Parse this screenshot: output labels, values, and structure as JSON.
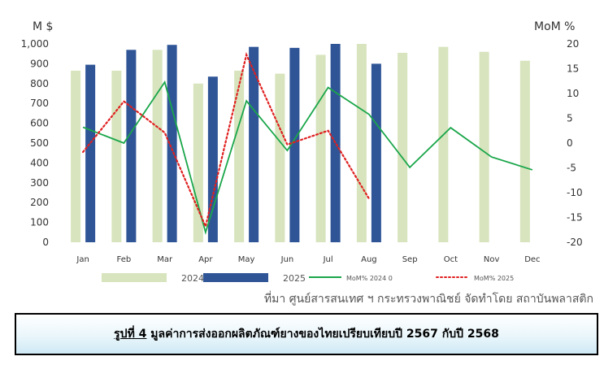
{
  "chart_data": {
    "type": "bar+line",
    "y_left_label": "M $",
    "y_right_label": "MoM %",
    "ylim_left": [
      0,
      1000
    ],
    "ylim_right": [
      -20,
      20
    ],
    "left_ticks": [
      "0",
      "100",
      "200",
      "300",
      "400",
      "500",
      "600",
      "700",
      "800",
      "900",
      "1,000"
    ],
    "right_ticks": [
      "-20",
      "-15",
      "-10",
      "-5",
      "0",
      "5",
      "10",
      "15",
      "20"
    ],
    "categories": [
      "Jan",
      "Feb",
      "Mar",
      "Apr",
      "May",
      "Jun",
      "Jul",
      "Aug",
      "Sep",
      "Oct",
      "Nov",
      "Dec"
    ],
    "bar_series": [
      {
        "name": "2024",
        "color": "#d7e4bd",
        "values": [
          865,
          865,
          970,
          800,
          865,
          850,
          945,
          1000,
          955,
          985,
          960,
          915
        ]
      },
      {
        "name": "2025",
        "color": "#2f5597",
        "values": [
          895,
          970,
          995,
          835,
          985,
          980,
          1000,
          900,
          null,
          null,
          null,
          null
        ]
      }
    ],
    "line_series": [
      {
        "name": "MoM% 2024 0",
        "color": "#1aa64a",
        "style": "solid",
        "values": [
          3.2,
          0,
          12.3,
          -18,
          8.5,
          -1.5,
          11.2,
          5.8,
          -4.9,
          3.1,
          -2.8,
          -5.4
        ]
      },
      {
        "name": "MoM% 2025",
        "color": "#e02020",
        "style": "dotted",
        "values": [
          -1.8,
          8.4,
          2.1,
          -16.8,
          17.8,
          -0.3,
          2.5,
          -11.2,
          null,
          null,
          null,
          null
        ]
      }
    ]
  },
  "source_text": "ที่มา ศูนย์สารสนเทศ ฯ กระทรวงพาณิชย์ จัดทำโดย สถาบันพลาสติก",
  "caption": {
    "label": "รูปที่ 4",
    "text": " มูลค่าการส่งออกผลิตภัณฑ์ยางของไทยเปรียบเทียบปี 2567 กับปี 2568"
  }
}
